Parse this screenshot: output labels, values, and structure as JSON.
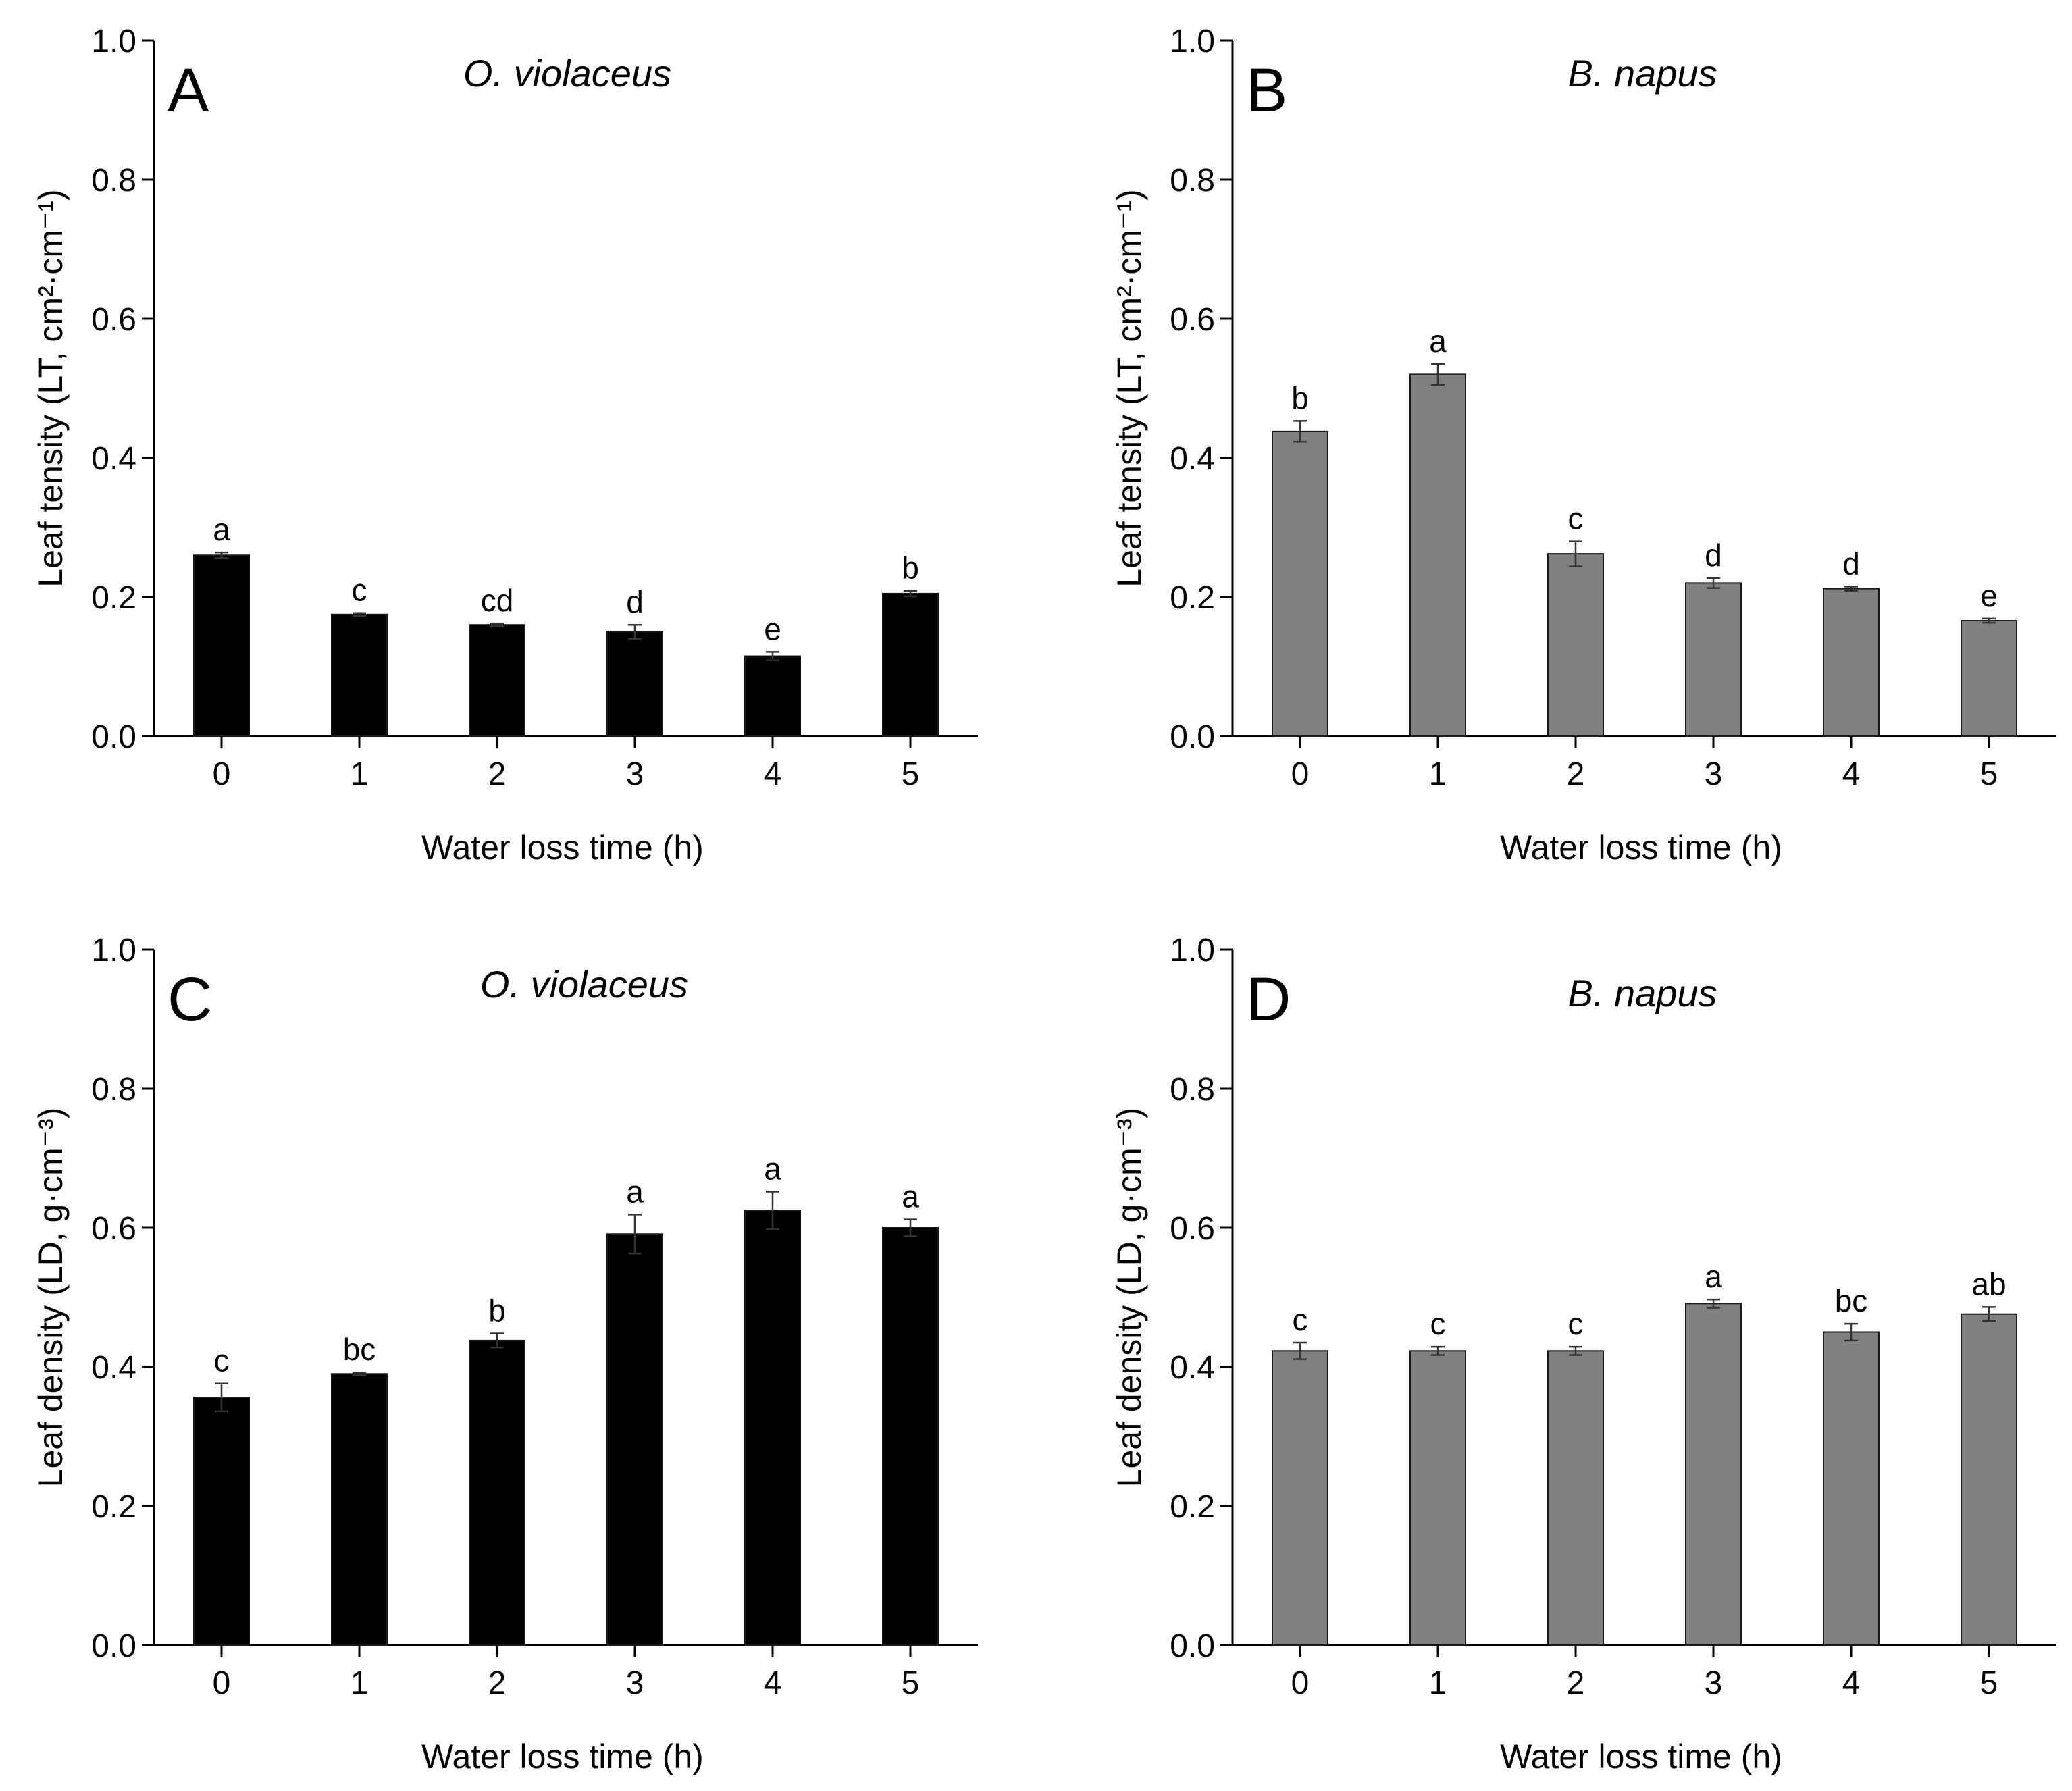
{
  "figure": {
    "colors": {
      "black_bars": "#000000",
      "gray_bars": "#808080",
      "axis": "#000000",
      "bar_stroke": "#1a1a1a"
    }
  },
  "chart_data": [
    {
      "panel": "A",
      "type": "bar",
      "species": "O. violaceus",
      "xlabel": "Water loss time (h)",
      "ylabel": "Leaf tensity (LT, cm²·cm⁻¹)",
      "categories": [
        "0",
        "1",
        "2",
        "3",
        "4",
        "5"
      ],
      "values": [
        0.26,
        0.175,
        0.16,
        0.15,
        0.115,
        0.205
      ],
      "errors": [
        0.004,
        0.002,
        0.002,
        0.01,
        0.006,
        0.004
      ],
      "sig_letters": [
        "a",
        "c",
        "cd",
        "d",
        "e",
        "b"
      ],
      "ylim": [
        0,
        1.0
      ],
      "yticks": [
        "0.0",
        "0.2",
        "0.4",
        "0.6",
        "0.8",
        "1.0"
      ],
      "color": "#000000"
    },
    {
      "panel": "B",
      "type": "bar",
      "species": "B. napus",
      "xlabel": "Water loss time (h)",
      "ylabel": "Leaf tensity (LT, cm²·cm⁻¹)",
      "categories": [
        "0",
        "1",
        "2",
        "3",
        "4",
        "5"
      ],
      "values": [
        0.438,
        0.52,
        0.262,
        0.22,
        0.212,
        0.166
      ],
      "errors": [
        0.015,
        0.015,
        0.018,
        0.007,
        0.003,
        0.003
      ],
      "sig_letters": [
        "b",
        "a",
        "c",
        "d",
        "d",
        "e"
      ],
      "ylim": [
        0,
        1.0
      ],
      "yticks": [
        "0.0",
        "0.2",
        "0.4",
        "0.6",
        "0.8",
        "1.0"
      ],
      "color": "#808080"
    },
    {
      "panel": "C",
      "type": "bar",
      "species": "O. violaceus",
      "xlabel": "Water loss time (h)",
      "ylabel": "Leaf density (LD, g·cm⁻³)",
      "categories": [
        "0",
        "1",
        "2",
        "3",
        "4",
        "5"
      ],
      "values": [
        0.356,
        0.39,
        0.438,
        0.591,
        0.625,
        0.6
      ],
      "errors": [
        0.02,
        0.002,
        0.01,
        0.028,
        0.027,
        0.012
      ],
      "sig_letters": [
        "c",
        "bc",
        "b",
        "a",
        "a",
        "a"
      ],
      "ylim": [
        0,
        1.0
      ],
      "yticks": [
        "0.0",
        "0.2",
        "0.4",
        "0.6",
        "0.8",
        "1.0"
      ],
      "color": "#000000"
    },
    {
      "panel": "D",
      "type": "bar",
      "species": "B. napus",
      "xlabel": "Water loss time (h)",
      "ylabel": "Leaf density (LD, g·cm⁻³)",
      "categories": [
        "0",
        "1",
        "2",
        "3",
        "4",
        "5"
      ],
      "values": [
        0.423,
        0.423,
        0.423,
        0.491,
        0.45,
        0.476
      ],
      "errors": [
        0.012,
        0.006,
        0.006,
        0.006,
        0.012,
        0.01
      ],
      "sig_letters": [
        "c",
        "c",
        "c",
        "a",
        "bc",
        "ab"
      ],
      "ylim": [
        0,
        1.0
      ],
      "yticks": [
        "0.0",
        "0.2",
        "0.4",
        "0.6",
        "0.8",
        "1.0"
      ],
      "color": "#808080"
    }
  ]
}
